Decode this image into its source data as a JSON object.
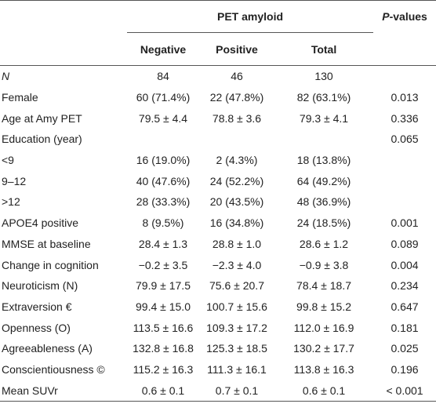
{
  "header": {
    "group": "PET amyloid",
    "p_italic": "P",
    "p_rest": "-values",
    "columns": [
      "Negative",
      "Positive",
      "Total"
    ]
  },
  "table": {
    "rows": [
      [
        "N",
        "84",
        "46",
        "130",
        null
      ],
      [
        "Female",
        "60 (71.4%)",
        "22 (47.8%)",
        "82 (63.1%)",
        "0.013"
      ],
      [
        "Age at Amy PET",
        "79.5 ± 4.4",
        "78.8 ± 3.6",
        "79.3 ± 4.1",
        "0.336"
      ],
      [
        "Education (year)",
        null,
        null,
        null,
        "0.065"
      ],
      [
        "<9",
        "16 (19.0%)",
        "2 (4.3%)",
        "18 (13.8%)",
        null
      ],
      [
        "9–12",
        "40 (47.6%)",
        "24 (52.2%)",
        "64 (49.2%)",
        null
      ],
      [
        ">12",
        "28 (33.3%)",
        "20 (43.5%)",
        "48 (36.9%)",
        null
      ],
      [
        "APOE4 positive",
        "8 (9.5%)",
        "16 (34.8%)",
        "24 (18.5%)",
        "0.001"
      ],
      [
        "MMSE at baseline",
        "28.4 ± 1.3",
        "28.8 ± 1.0",
        "28.6 ± 1.2",
        "0.089"
      ],
      [
        "Change in cognition",
        "−0.2 ± 3.5",
        "−2.3 ± 4.0",
        "−0.9 ± 3.8",
        "0.004"
      ],
      [
        "Neuroticism (N)",
        "79.9 ± 17.5",
        "75.6 ± 20.7",
        "78.4 ± 18.7",
        "0.234"
      ],
      [
        "Extraversion €",
        "99.4 ± 15.0",
        "100.7 ± 15.6",
        "99.8 ± 15.2",
        "0.647"
      ],
      [
        "Openness (O)",
        "113.5 ± 16.6",
        "109.3 ± 17.2",
        "112.0 ± 16.9",
        "0.181"
      ],
      [
        "Agreeableness (A)",
        "132.8 ± 16.8",
        "125.3 ± 18.5",
        "130.2 ± 17.7",
        "0.025"
      ],
      [
        "Conscientiousness ©",
        "115.2 ± 16.3",
        "111.3 ± 16.1",
        "113.8 ± 16.3",
        "0.196"
      ],
      [
        "Mean SUVr",
        "0.6 ± 0.1",
        "0.7 ± 0.1",
        "0.6 ± 0.1",
        "< 0.001"
      ]
    ]
  }
}
